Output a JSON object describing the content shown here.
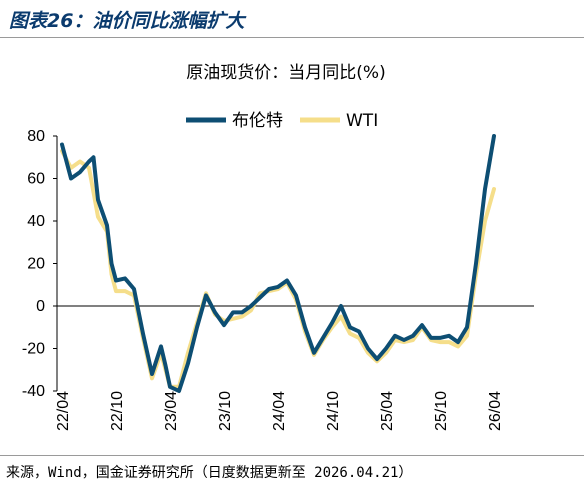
{
  "header": {
    "figure_title": "图表26：油价同比涨幅扩大"
  },
  "footer": {
    "source": "来源，Wind，国金证券研究所（日度数据更新至 2026.04.21）"
  },
  "chart_data": {
    "type": "line",
    "title": "原油现货价：当月同比(%)",
    "xlabel": "",
    "ylabel": "",
    "ylim": [
      -40,
      80
    ],
    "yticks": [
      80,
      60,
      40,
      20,
      0,
      -20,
      -40
    ],
    "x_tick_labels": [
      "22/04",
      "22/10",
      "23/04",
      "23/10",
      "24/04",
      "24/10",
      "25/04",
      "25/10",
      "26/04"
    ],
    "grid": false,
    "legend_position": "top-center",
    "series": [
      {
        "name": "布伦特",
        "color": "#0d4e73",
        "points": [
          [
            "22/04",
            76
          ],
          [
            "22/05",
            60
          ],
          [
            "22/06",
            63
          ],
          [
            "22/07",
            68
          ],
          [
            "22/07",
            70
          ],
          [
            "22/08",
            50
          ],
          [
            "22/09",
            38
          ],
          [
            "22/09",
            20
          ],
          [
            "22/10",
            12
          ],
          [
            "22/11",
            13
          ],
          [
            "22/12",
            8
          ],
          [
            "23/01",
            -13
          ],
          [
            "23/02",
            -32
          ],
          [
            "23/03",
            -19
          ],
          [
            "23/03",
            -28
          ],
          [
            "23/04",
            -38
          ],
          [
            "23/05",
            -40
          ],
          [
            "23/06",
            -27
          ],
          [
            "23/07",
            -10
          ],
          [
            "23/08",
            5
          ],
          [
            "23/09",
            -3
          ],
          [
            "23/10",
            -9
          ],
          [
            "23/11",
            -3
          ],
          [
            "23/12",
            -3
          ],
          [
            "24/01",
            0
          ],
          [
            "24/02",
            4
          ],
          [
            "24/03",
            8
          ],
          [
            "24/04",
            9
          ],
          [
            "24/05",
            12
          ],
          [
            "24/06",
            5
          ],
          [
            "24/07",
            -10
          ],
          [
            "24/08",
            -22
          ],
          [
            "24/09",
            -15
          ],
          [
            "24/10",
            -8
          ],
          [
            "24/11",
            0
          ],
          [
            "24/12",
            -10
          ],
          [
            "25/01",
            -12
          ],
          [
            "25/02",
            -20
          ],
          [
            "25/03",
            -25
          ],
          [
            "25/04",
            -20
          ],
          [
            "25/05",
            -14
          ],
          [
            "25/06",
            -16
          ],
          [
            "25/07",
            -14
          ],
          [
            "25/08",
            -9
          ],
          [
            "25/09",
            -15
          ],
          [
            "25/10",
            -15
          ],
          [
            "25/11",
            -14
          ],
          [
            "25/12",
            -17
          ],
          [
            "26/01",
            -10
          ],
          [
            "26/02",
            20
          ],
          [
            "26/03",
            55
          ],
          [
            "26/04",
            80
          ]
        ]
      },
      {
        "name": "WTI",
        "color": "#f5de8a",
        "points": [
          [
            "22/04",
            73
          ],
          [
            "22/05",
            65
          ],
          [
            "22/06",
            68
          ],
          [
            "22/07",
            65
          ],
          [
            "22/08",
            42
          ],
          [
            "22/09",
            35
          ],
          [
            "22/09",
            15
          ],
          [
            "22/10",
            7
          ],
          [
            "22/11",
            7
          ],
          [
            "22/12",
            5
          ],
          [
            "23/01",
            -15
          ],
          [
            "23/02",
            -34
          ],
          [
            "23/03",
            -22
          ],
          [
            "23/03",
            -30
          ],
          [
            "23/04",
            -38
          ],
          [
            "23/05",
            -38
          ],
          [
            "23/06",
            -22
          ],
          [
            "23/07",
            -8
          ],
          [
            "23/08",
            6
          ],
          [
            "23/09",
            -4
          ],
          [
            "23/10",
            -7
          ],
          [
            "23/11",
            -6
          ],
          [
            "23/12",
            -5
          ],
          [
            "24/01",
            -2
          ],
          [
            "24/02",
            6
          ],
          [
            "24/03",
            7
          ],
          [
            "24/04",
            8
          ],
          [
            "24/05",
            11
          ],
          [
            "24/06",
            3
          ],
          [
            "24/07",
            -12
          ],
          [
            "24/08",
            -23
          ],
          [
            "24/09",
            -16
          ],
          [
            "24/10",
            -10
          ],
          [
            "24/11",
            -5
          ],
          [
            "24/12",
            -13
          ],
          [
            "25/01",
            -15
          ],
          [
            "25/02",
            -22
          ],
          [
            "25/03",
            -26
          ],
          [
            "25/04",
            -22
          ],
          [
            "25/05",
            -16
          ],
          [
            "25/06",
            -17
          ],
          [
            "25/07",
            -16
          ],
          [
            "25/08",
            -10
          ],
          [
            "25/09",
            -16
          ],
          [
            "25/10",
            -17
          ],
          [
            "25/11",
            -17
          ],
          [
            "25/12",
            -19
          ],
          [
            "26/01",
            -14
          ],
          [
            "26/02",
            15
          ],
          [
            "26/03",
            40
          ],
          [
            "26/04",
            55
          ]
        ]
      }
    ]
  }
}
